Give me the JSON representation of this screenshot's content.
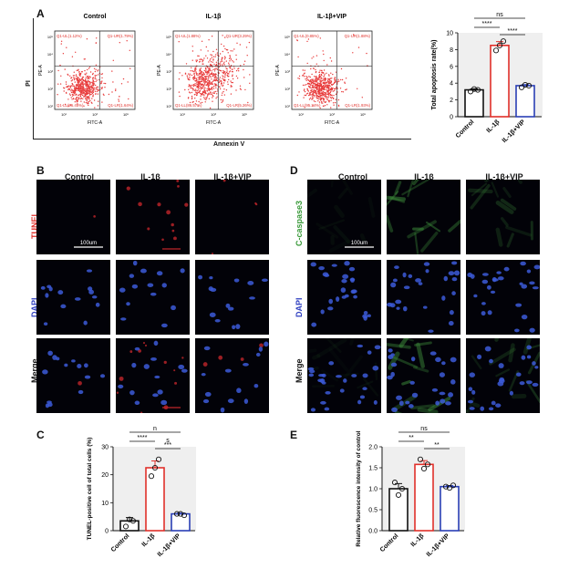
{
  "panelA": {
    "label": "A",
    "flow_titles": [
      "Control",
      "IL-1β",
      "IL-1β+VIP"
    ],
    "pi_label": "PI",
    "annexin_label": "Annexin V",
    "y_axis": "PE-A",
    "x_axis": "FITC-A",
    "ticks_y": [
      "10⁵",
      "10⁴",
      "10³",
      "10²",
      "10¹"
    ],
    "ticks_x": [
      "10¹",
      "10³",
      "10⁵"
    ],
    "quadrants": [
      {
        "ul": "Q1-UL(1.12%)",
        "ur": "Q1-UR(1.79%)",
        "ll": "Q1-LL(96.45%)",
        "lr": "Q1-LR(1.64%)"
      },
      {
        "ul": "Q1-UL(1.88%)",
        "ur": "Q1-UR(3.29%)",
        "ll": "Q1-LL(86.57%)",
        "lr": "Q1-LR(5.26%)"
      },
      {
        "ul": "Q1-UL(0.85%)",
        "ur": "Q1-UR(1.88%)",
        "ll": "Q1-LL(95.34%)",
        "lr": "Q1-LR(1.93%)"
      }
    ]
  },
  "panelB": {
    "label": "B",
    "cols": [
      "Control",
      "IL-1β",
      "IL-1β+VIP"
    ],
    "rows": [
      "TUNEL",
      "DAPI",
      "Merge"
    ],
    "scale": "100um"
  },
  "panelD": {
    "label": "D",
    "cols": [
      "Control",
      "IL-1β",
      "IL-1β+VIP"
    ],
    "rows": [
      "C-caspase3",
      "DAPI",
      "Merge"
    ],
    "scale": "100um"
  },
  "chart_data": [
    {
      "panel": "A",
      "type": "bar",
      "categories": [
        "Control",
        "IL-1β",
        "IL-1β+VIP"
      ],
      "values": [
        3.2,
        8.5,
        3.7
      ],
      "points": [
        [
          3.0,
          3.3,
          3.2
        ],
        [
          7.9,
          8.5,
          9.0
        ],
        [
          3.5,
          3.8,
          3.7
        ]
      ],
      "ylabel": "Total apoptosis rate(%)",
      "ylim": [
        0,
        10
      ],
      "yticks": [
        "0",
        "2",
        "4",
        "6",
        "8",
        "10"
      ],
      "colors": [
        "#111111",
        "#e0302a",
        "#2a3fb5"
      ],
      "sig": [
        {
          "from": 0,
          "to": 2,
          "text": "ns"
        },
        {
          "from": 0,
          "to": 1,
          "text": "****"
        },
        {
          "from": 1,
          "to": 2,
          "text": "****"
        }
      ]
    },
    {
      "panel": "C",
      "type": "bar",
      "categories": [
        "Control",
        "IL-1β",
        "IL-1β+VIP"
      ],
      "values": [
        3.5,
        22.5,
        6.0
      ],
      "points": [
        [
          1.5,
          4.0,
          3.5
        ],
        [
          19.5,
          22.5,
          25.5
        ],
        [
          6.0,
          6.0,
          5.5
        ]
      ],
      "ylabel": "TUNEL-positive cell of total cells (%)",
      "ylim": [
        0,
        30
      ],
      "yticks": [
        "0",
        "10",
        "20",
        "30"
      ],
      "colors": [
        "#111111",
        "#e0302a",
        "#2a3fb5"
      ],
      "sig": [
        {
          "from": 0,
          "to": 2,
          "text": "n"
        },
        {
          "from": 0,
          "to": 1,
          "text": "****"
        },
        {
          "from": 1,
          "to": 2,
          "text": "***"
        }
      ],
      "extra_text": "s"
    },
    {
      "panel": "E",
      "type": "bar",
      "categories": [
        "Control",
        "IL-1β",
        "IL-1β+VIP"
      ],
      "values": [
        1.0,
        1.58,
        1.05
      ],
      "points": [
        [
          1.15,
          0.85,
          1.0
        ],
        [
          1.7,
          1.48,
          1.58
        ],
        [
          1.05,
          1.02,
          1.08
        ]
      ],
      "ylabel": "Relative fluorescence intensity of control",
      "ylim": [
        0,
        2.0
      ],
      "yticks": [
        "0.0",
        "0.5",
        "1.0",
        "1.5",
        "2.0"
      ],
      "colors": [
        "#111111",
        "#e0302a",
        "#2a3fb5"
      ],
      "sig": [
        {
          "from": 0,
          "to": 2,
          "text": "ns"
        },
        {
          "from": 0,
          "to": 1,
          "text": "**"
        },
        {
          "from": 1,
          "to": 2,
          "text": "**"
        }
      ]
    }
  ],
  "labels": {
    "C": "C",
    "E": "E"
  }
}
